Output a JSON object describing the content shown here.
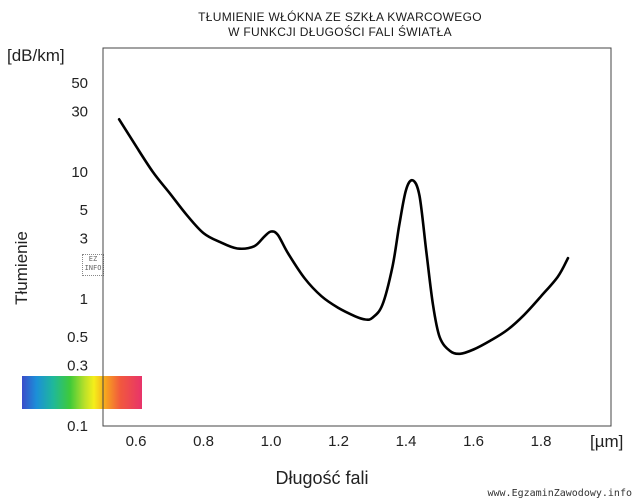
{
  "chart_data": {
    "type": "line",
    "title": "TŁUMIENIE WŁÓKNA ZE SZKŁA KWARCOWEGO",
    "subtitle": "W FUNKCJI DŁUGOŚCI FALI ŚWIATŁA",
    "xlabel": "Długość fali",
    "ylabel": "Tłumienie",
    "x_unit": "[µm]",
    "y_unit": "[dB/km]",
    "y_scale": "log",
    "xlim": [
      0.5,
      1.9
    ],
    "ylim": [
      0.1,
      100
    ],
    "x_ticks": [
      0.6,
      0.8,
      1.0,
      1.2,
      1.4,
      1.6,
      1.8
    ],
    "x_tick_labels": [
      "0.6",
      "0.8",
      "1.0",
      "1.2",
      "1.4",
      "1.6",
      "1.8"
    ],
    "y_ticks": [
      0.1,
      0.3,
      0.5,
      1,
      3,
      5,
      10,
      30,
      50
    ],
    "y_tick_labels": [
      "0.1",
      "0.3",
      "0.5",
      "1",
      "3",
      "5",
      "10",
      "30",
      "50"
    ],
    "grid": false,
    "series": [
      {
        "color": "#000000",
        "x": [
          0.55,
          0.6,
          0.65,
          0.7,
          0.75,
          0.8,
          0.85,
          0.9,
          0.95,
          0.98,
          1.0,
          1.02,
          1.05,
          1.1,
          1.15,
          1.2,
          1.25,
          1.28,
          1.3,
          1.33,
          1.36,
          1.38,
          1.4,
          1.42,
          1.44,
          1.46,
          1.48,
          1.5,
          1.53,
          1.56,
          1.6,
          1.65,
          1.7,
          1.75,
          1.8,
          1.85,
          1.88
        ],
        "y": [
          26,
          16,
          10,
          6.8,
          4.6,
          3.3,
          2.8,
          2.5,
          2.6,
          3.1,
          3.4,
          3.2,
          2.3,
          1.45,
          1.05,
          0.85,
          0.73,
          0.69,
          0.71,
          0.9,
          1.8,
          3.8,
          7.2,
          8.6,
          6.5,
          2.4,
          0.9,
          0.5,
          0.39,
          0.37,
          0.4,
          0.47,
          0.57,
          0.75,
          1.05,
          1.5,
          2.1
        ]
      }
    ]
  },
  "spectrum_bar": {
    "colors": [
      "#3b4cc9",
      "#1c8fd8",
      "#1fb89a",
      "#3fca3a",
      "#b8e02a",
      "#f5ee1a",
      "#f7a21f",
      "#f1583e",
      "#e8336a"
    ]
  },
  "logo": {
    "text": "EZ INFO"
  },
  "watermark": "www.EgzaminZawodowy.info"
}
